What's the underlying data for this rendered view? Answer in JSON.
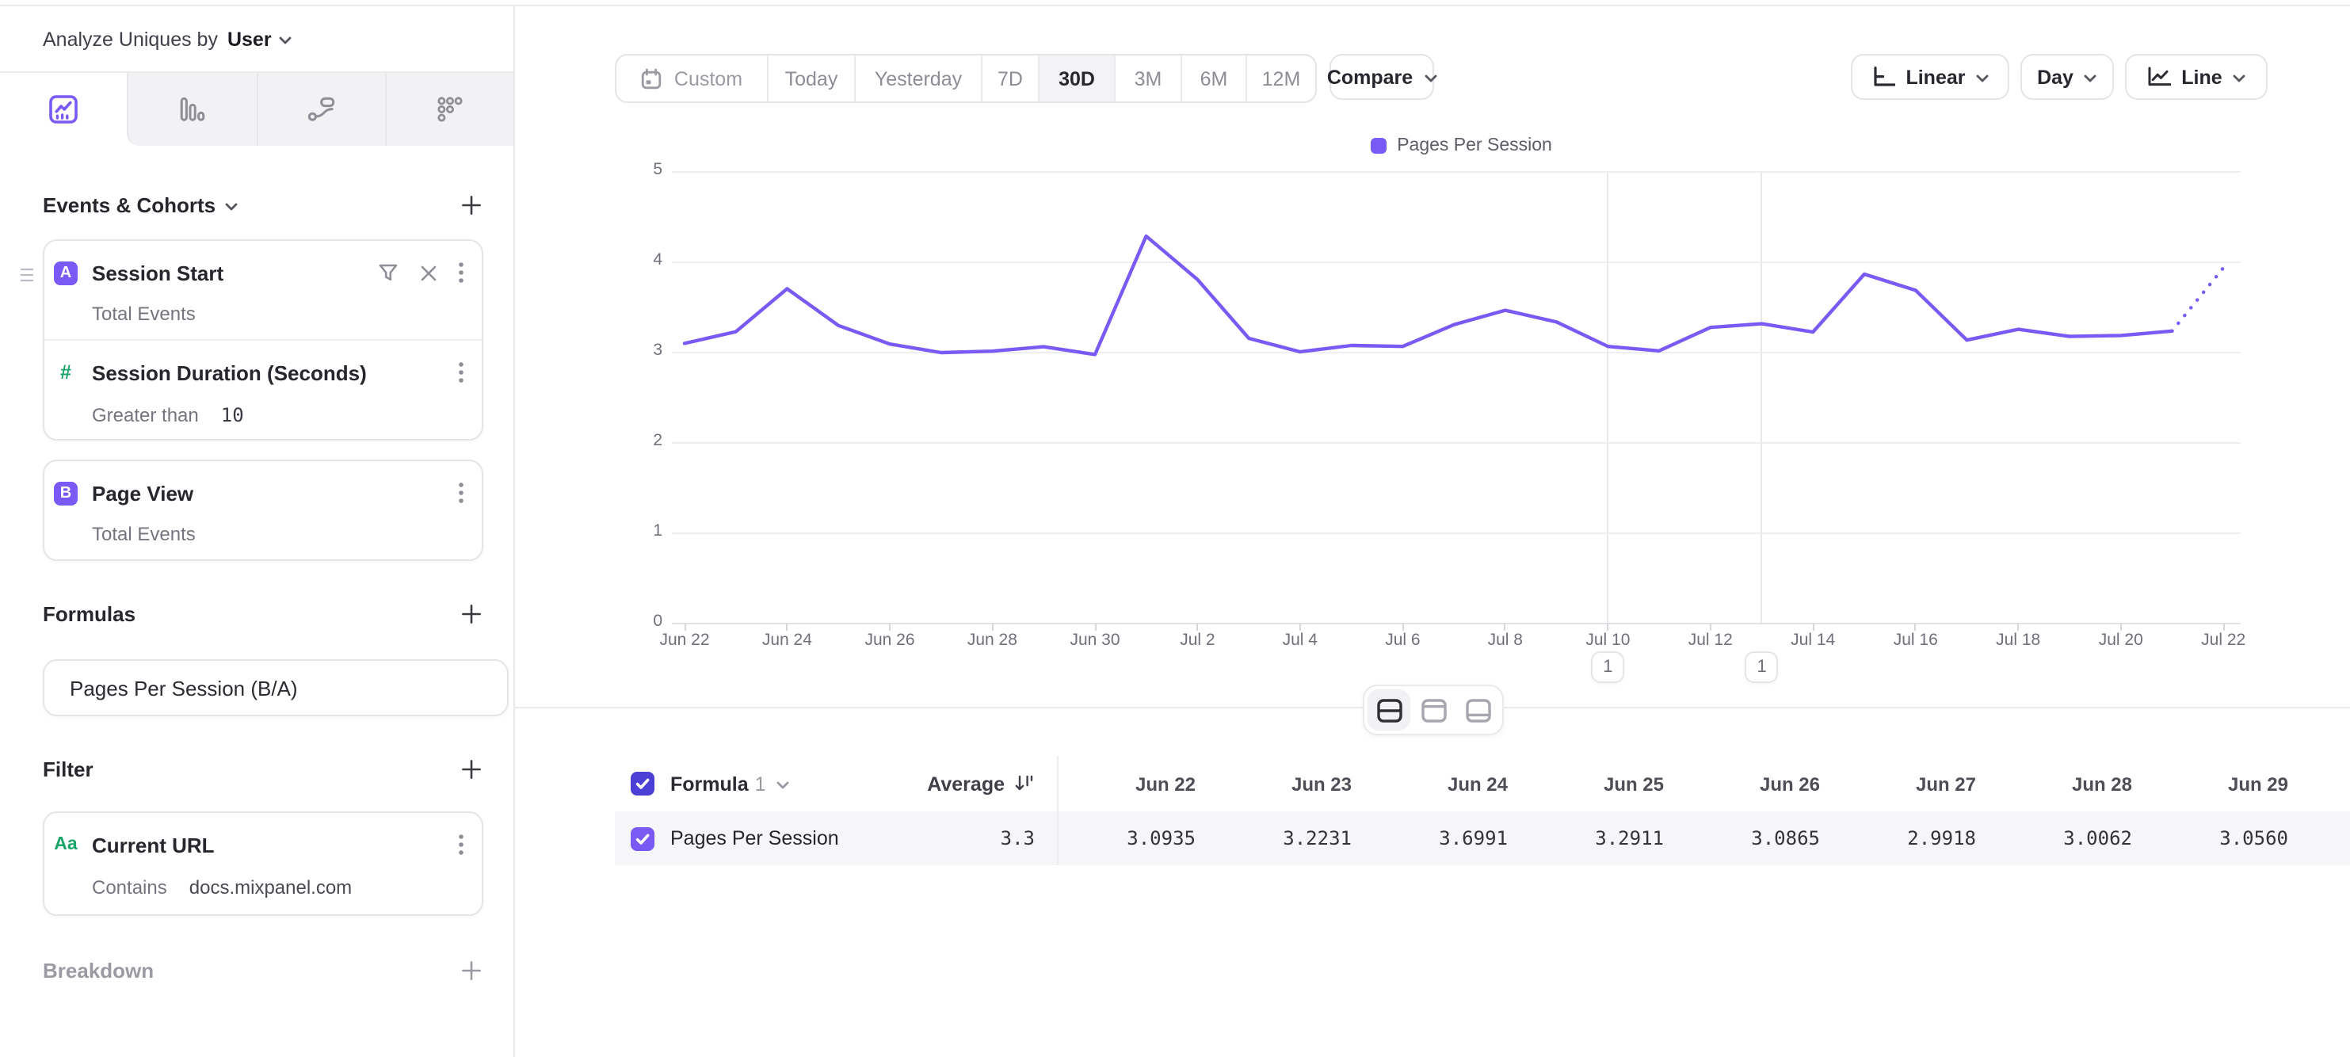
{
  "header": {
    "analyze_label": "Analyze Uniques by",
    "analyze_value": "User"
  },
  "sidebar": {
    "view_tabs": [
      "insights-line",
      "bar-chart",
      "flows",
      "retention"
    ],
    "active_view_tab": "insights-line",
    "events_section_title": "Events & Cohorts",
    "events": [
      {
        "badge": "A",
        "name": "Session Start",
        "measure": "Total Events"
      },
      {
        "icon": "numeric-hash",
        "name": "Session Duration (Seconds)",
        "operator": "Greater than",
        "value": "10"
      },
      {
        "badge": "B",
        "name": "Page View",
        "measure": "Total Events"
      }
    ],
    "formulas_section_title": "Formulas",
    "formula_item": {
      "name": "Pages Per Session (B/A)"
    },
    "filter_section_title": "Filter",
    "filter_item": {
      "icon": "Aa",
      "name": "Current URL",
      "operator": "Contains",
      "value": "docs.mixpanel.com"
    },
    "breakdown_section_title": "Breakdown"
  },
  "controls": {
    "date_ranges": [
      "Custom",
      "Today",
      "Yesterday",
      "7D",
      "30D",
      "3M",
      "6M",
      "12M"
    ],
    "active_range": "30D",
    "compare_label": "Compare",
    "scale_label": "Linear",
    "interval_label": "Day",
    "chart_type_label": "Line"
  },
  "chart_data": {
    "type": "line",
    "title": "",
    "legend_position": "top-center",
    "grid": "horizontal",
    "ylim": [
      0,
      5
    ],
    "yticks": [
      0,
      1,
      2,
      3,
      4,
      5
    ],
    "x_tick_step": 2,
    "x_tick_labels": [
      "Jun 22",
      "Jun 24",
      "Jun 26",
      "Jun 28",
      "Jun 30",
      "Jul 2",
      "Jul 4",
      "Jul 6",
      "Jul 8",
      "Jul 10",
      "Jul 12",
      "Jul 14",
      "Jul 16",
      "Jul 18",
      "Jul 20",
      "Jul 22"
    ],
    "x_days": [
      "Jun 22",
      "Jun 23",
      "Jun 24",
      "Jun 25",
      "Jun 26",
      "Jun 27",
      "Jun 28",
      "Jun 29",
      "Jun 30",
      "Jul 1",
      "Jul 2",
      "Jul 3",
      "Jul 4",
      "Jul 5",
      "Jul 6",
      "Jul 7",
      "Jul 8",
      "Jul 9",
      "Jul 10",
      "Jul 11",
      "Jul 12",
      "Jul 13",
      "Jul 14",
      "Jul 15",
      "Jul 16",
      "Jul 17",
      "Jul 18",
      "Jul 19",
      "Jul 20",
      "Jul 21",
      "Jul 22"
    ],
    "series": [
      {
        "name": "Pages Per Session",
        "color": "#7a5af5",
        "dotted_from_index": 29,
        "values": [
          3.0935,
          3.2231,
          3.6991,
          3.2911,
          3.0865,
          2.9918,
          3.0062,
          3.056,
          2.97,
          4.28,
          3.8,
          3.15,
          3.0,
          3.07,
          3.06,
          3.3,
          3.46,
          3.33,
          3.06,
          3.01,
          3.27,
          3.31,
          3.22,
          3.86,
          3.68,
          3.13,
          3.25,
          3.17,
          3.18,
          3.23,
          3.93
        ]
      }
    ],
    "annotations": [
      {
        "x_index": 18,
        "label": "1"
      },
      {
        "x_index": 21,
        "label": "1"
      }
    ]
  },
  "table": {
    "formula_label": "Formula",
    "formula_number": "1",
    "average_label": "Average",
    "row_label": "Pages Per Session",
    "row_average": "3.3",
    "row_checked": true,
    "columns": [
      {
        "header": "Jun 22",
        "value": "3.0935"
      },
      {
        "header": "Jun 23",
        "value": "3.2231"
      },
      {
        "header": "Jun 24",
        "value": "3.6991"
      },
      {
        "header": "Jun 25",
        "value": "3.2911"
      },
      {
        "header": "Jun 26",
        "value": "3.0865"
      },
      {
        "header": "Jun 27",
        "value": "2.9918"
      },
      {
        "header": "Jun 28",
        "value": "3.0062"
      },
      {
        "header": "Jun 29",
        "value": "3.0560"
      }
    ]
  },
  "colors": {
    "accent": "#7a5af5",
    "accent_dark": "#4b3fd6",
    "green": "#19a468"
  }
}
